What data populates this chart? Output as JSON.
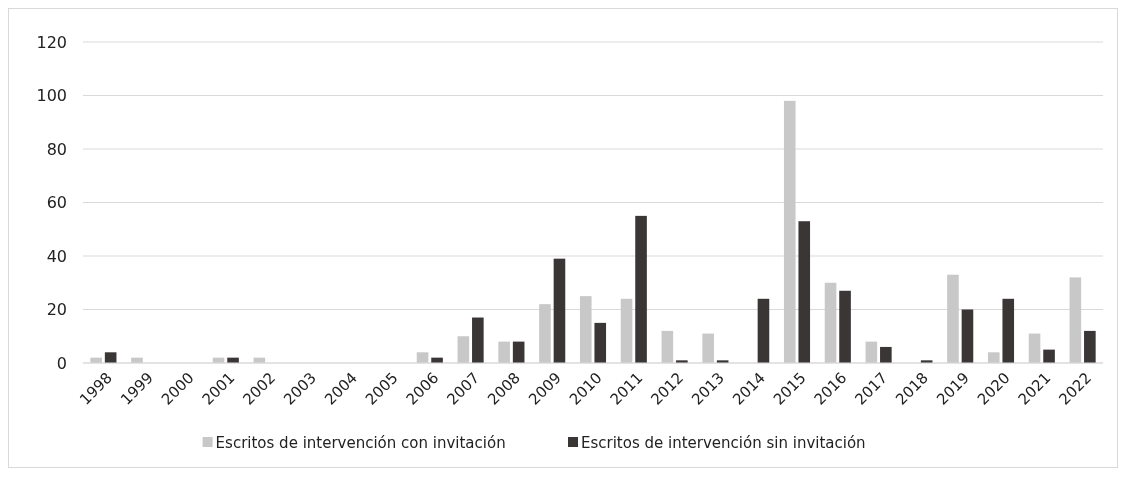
{
  "chart_data": {
    "type": "bar",
    "categories": [
      "1998",
      "1999",
      "2000",
      "2001",
      "2002",
      "2003",
      "2004",
      "2005",
      "2006",
      "2007",
      "2008",
      "2009",
      "2010",
      "2011",
      "2012",
      "2013",
      "2014",
      "2015",
      "2016",
      "2017",
      "2018",
      "2019",
      "2020",
      "2021",
      "2022"
    ],
    "series": [
      {
        "name": "Escritos de intervención con invitación",
        "color": "#c8c8c8",
        "values": [
          2,
          2,
          0,
          2,
          2,
          0,
          0,
          0,
          4,
          10,
          8,
          22,
          25,
          24,
          12,
          11,
          0,
          98,
          30,
          8,
          0,
          33,
          4,
          11,
          32
        ]
      },
      {
        "name": "Escritos de intervención sin invitación",
        "color": "#3a3636",
        "values": [
          4,
          0,
          0,
          2,
          0,
          0,
          0,
          0,
          2,
          17,
          8,
          39,
          15,
          55,
          1,
          1,
          24,
          53,
          27,
          6,
          1,
          20,
          24,
          5,
          12
        ]
      }
    ],
    "ylim": [
      0,
      120
    ],
    "yticks": [
      0,
      20,
      40,
      60,
      80,
      100,
      120
    ],
    "grid": "y",
    "legend": "bottom"
  }
}
